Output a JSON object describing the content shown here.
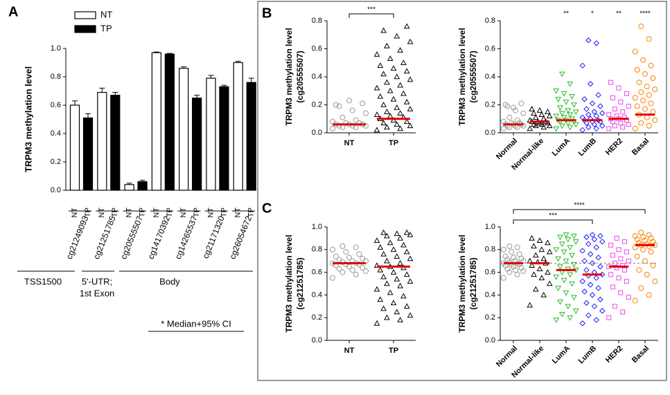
{
  "chart_data": [
    {
      "type": "bar",
      "panel": "A",
      "ylabel": "TRPM3 methylation level",
      "ylim": [
        0,
        1
      ],
      "yticks": [
        {
          "value": 0,
          "label": "0.0"
        },
        {
          "value": 0.2,
          "label": "0.2"
        },
        {
          "value": 0.4,
          "label": "0.4"
        },
        {
          "value": 0.6,
          "label": "0.6"
        },
        {
          "value": 0.8,
          "label": "0.8"
        },
        {
          "value": 1,
          "label": "1.0"
        }
      ],
      "categories": [
        "cg21249093",
        "cg21251785",
        "cg20555507",
        "cg14170392",
        "cg14265537",
        "cg21171320",
        "cg26054672"
      ],
      "category_colors": [
        "#000000",
        "#4a4ae8",
        "#e01818",
        "#000000",
        "#000000",
        "#000000",
        "#000000"
      ],
      "series": [
        {
          "name": "NT",
          "color": "#ffffff",
          "values": [
            0.6,
            0.69,
            0.04,
            0.97,
            0.86,
            0.79,
            0.9
          ],
          "errors": [
            0.03,
            0.03,
            0.01,
            0.005,
            0.01,
            0.02,
            0.01
          ]
        },
        {
          "name": "TP",
          "color": "#000000",
          "values": [
            0.51,
            0.67,
            0.06,
            0.96,
            0.65,
            0.73,
            0.76
          ],
          "errors": [
            0.03,
            0.02,
            0.01,
            0.005,
            0.02,
            0.01,
            0.03
          ]
        }
      ],
      "regions": [
        {
          "lines": [
            "TSS1500"
          ],
          "color": "#1a1acc"
        },
        {
          "lines": [
            "5'-UTR;",
            "1st Exon"
          ],
          "color": "#e01818"
        },
        {
          "lines": [
            "Body"
          ],
          "color": "#000000"
        }
      ],
      "note": "* Median+95% CI"
    },
    {
      "type": "strip",
      "panel": "B",
      "ylabel": [
        "TRPM3 methylation level",
        "(cg20555507)"
      ],
      "ylim": [
        0,
        0.8
      ],
      "yticks": [
        {
          "value": 0,
          "label": "0.0"
        },
        {
          "value": 0.2,
          "label": "0.2"
        },
        {
          "value": 0.4,
          "label": "0.4"
        },
        {
          "value": 0.6,
          "label": "0.6"
        },
        {
          "value": 0.8,
          "label": "0.8"
        }
      ],
      "categories": [
        "NT",
        "TP"
      ],
      "groups": [
        {
          "color": "#999999",
          "marker": "circle",
          "median": 0.06,
          "values": [
            0.03,
            0.04,
            0.04,
            0.05,
            0.05,
            0.05,
            0.06,
            0.06,
            0.06,
            0.07,
            0.07,
            0.08,
            0.09,
            0.11,
            0.14,
            0.16,
            0.19,
            0.21,
            0.23,
            0.2
          ]
        },
        {
          "color": "#000000",
          "marker": "triangle",
          "median": 0.1,
          "values": [
            0.02,
            0.03,
            0.04,
            0.05,
            0.06,
            0.07,
            0.08,
            0.09,
            0.1,
            0.11,
            0.12,
            0.13,
            0.14,
            0.15,
            0.17,
            0.18,
            0.2,
            0.22,
            0.24,
            0.26,
            0.28,
            0.3,
            0.32,
            0.34,
            0.36,
            0.38,
            0.4,
            0.42,
            0.44,
            0.46,
            0.48,
            0.5,
            0.53,
            0.56,
            0.59,
            0.62,
            0.65,
            0.69,
            0.73,
            0.76
          ]
        }
      ],
      "comparisons": [
        {
          "groups": [
            "NT",
            "TP"
          ],
          "label": "***"
        }
      ]
    },
    {
      "type": "strip",
      "ylabel": [
        "TRPM3 methylation level",
        "(cg20555507)"
      ],
      "ylim": [
        0,
        0.8
      ],
      "yticks": [
        {
          "value": 0,
          "label": "0.0"
        },
        {
          "value": 0.2,
          "label": "0.2"
        },
        {
          "value": 0.4,
          "label": "0.4"
        },
        {
          "value": 0.6,
          "label": "0.6"
        },
        {
          "value": 0.8,
          "label": "0.8"
        }
      ],
      "categories": [
        "Normal",
        "Normal-like",
        "LumA",
        "LumB",
        "HER2",
        "Basal"
      ],
      "stars": [
        null,
        null,
        "**",
        "*",
        "**",
        "****"
      ],
      "groups": [
        {
          "color": "#999999",
          "marker": "circle",
          "median": 0.06,
          "values": [
            0.03,
            0.04,
            0.04,
            0.05,
            0.05,
            0.05,
            0.06,
            0.06,
            0.06,
            0.07,
            0.07,
            0.08,
            0.09,
            0.11,
            0.14,
            0.16,
            0.19,
            0.21,
            0.18,
            0.2
          ]
        },
        {
          "color": "#000000",
          "marker": "triangle",
          "median": 0.08,
          "values": [
            0.03,
            0.04,
            0.05,
            0.05,
            0.06,
            0.06,
            0.07,
            0.07,
            0.08,
            0.08,
            0.08,
            0.09,
            0.1,
            0.11,
            0.12,
            0.13,
            0.14,
            0.15,
            0.16,
            0.17
          ]
        },
        {
          "color": "#22bb22",
          "marker": "invtriangle",
          "median": 0.09,
          "values": [
            0.03,
            0.04,
            0.05,
            0.06,
            0.07,
            0.08,
            0.08,
            0.09,
            0.09,
            0.1,
            0.11,
            0.12,
            0.13,
            0.14,
            0.15,
            0.16,
            0.18,
            0.2,
            0.22,
            0.24,
            0.26,
            0.28,
            0.3,
            0.35,
            0.42
          ]
        },
        {
          "color": "#1a1aff",
          "marker": "diamond",
          "median": 0.09,
          "values": [
            0.02,
            0.03,
            0.04,
            0.05,
            0.06,
            0.07,
            0.08,
            0.08,
            0.09,
            0.09,
            0.1,
            0.11,
            0.12,
            0.13,
            0.14,
            0.15,
            0.17,
            0.19,
            0.21,
            0.24,
            0.27,
            0.35,
            0.48,
            0.64,
            0.66
          ]
        },
        {
          "color": "#ee44ee",
          "marker": "square",
          "median": 0.1,
          "values": [
            0.03,
            0.04,
            0.05,
            0.06,
            0.07,
            0.08,
            0.09,
            0.1,
            0.1,
            0.11,
            0.12,
            0.13,
            0.15,
            0.17,
            0.19,
            0.22,
            0.25,
            0.28,
            0.32,
            0.36
          ]
        },
        {
          "color": "#ff7f00",
          "marker": "circle",
          "median": 0.13,
          "values": [
            0.03,
            0.05,
            0.07,
            0.09,
            0.11,
            0.13,
            0.15,
            0.17,
            0.19,
            0.21,
            0.23,
            0.25,
            0.27,
            0.29,
            0.31,
            0.33,
            0.36,
            0.39,
            0.42,
            0.45,
            0.48,
            0.52,
            0.58,
            0.67,
            0.76
          ]
        }
      ]
    },
    {
      "type": "strip",
      "panel": "C",
      "ylabel": [
        "TRPM3 methylation level",
        "(cg21251785)"
      ],
      "ylim": [
        0,
        1
      ],
      "yticks": [
        {
          "value": 0,
          "label": "0.0"
        },
        {
          "value": 0.2,
          "label": "0.2"
        },
        {
          "value": 0.4,
          "label": "0.4"
        },
        {
          "value": 0.6,
          "label": "0.6"
        },
        {
          "value": 0.8,
          "label": "0.8"
        },
        {
          "value": 1,
          "label": "1.0"
        }
      ],
      "categories": [
        "NT",
        "TP"
      ],
      "groups": [
        {
          "color": "#999999",
          "marker": "circle",
          "median": 0.68,
          "values": [
            0.55,
            0.58,
            0.6,
            0.61,
            0.62,
            0.63,
            0.64,
            0.65,
            0.66,
            0.67,
            0.67,
            0.68,
            0.68,
            0.69,
            0.7,
            0.7,
            0.71,
            0.72,
            0.73,
            0.74,
            0.76,
            0.78,
            0.8,
            0.82,
            0.83
          ]
        },
        {
          "color": "#000000",
          "marker": "triangle",
          "median": 0.65,
          "values": [
            0.15,
            0.18,
            0.2,
            0.22,
            0.25,
            0.28,
            0.3,
            0.33,
            0.36,
            0.39,
            0.42,
            0.45,
            0.48,
            0.5,
            0.52,
            0.54,
            0.56,
            0.58,
            0.6,
            0.62,
            0.64,
            0.65,
            0.66,
            0.68,
            0.7,
            0.72,
            0.74,
            0.76,
            0.78,
            0.8,
            0.82,
            0.84,
            0.86,
            0.88,
            0.9,
            0.92,
            0.93,
            0.94,
            0.95,
            0.95
          ]
        }
      ]
    },
    {
      "type": "strip",
      "ylabel": [
        "TRPM3 methylation level",
        "(cg21251785)"
      ],
      "ylim": [
        0,
        1
      ],
      "yticks": [
        {
          "value": 0,
          "label": "0.0"
        },
        {
          "value": 0.2,
          "label": "0.2"
        },
        {
          "value": 0.4,
          "label": "0.4"
        },
        {
          "value": 0.6,
          "label": "0.6"
        },
        {
          "value": 0.8,
          "label": "0.8"
        },
        {
          "value": 1,
          "label": "1.0"
        }
      ],
      "categories": [
        "Normal",
        "Normal-like",
        "LumA",
        "LumB",
        "HER2",
        "Basal"
      ],
      "reference_line": 0.68,
      "comparisons": [
        {
          "groups": [
            "Normal",
            "LumB"
          ],
          "label": "***"
        },
        {
          "groups": [
            "Normal",
            "Basal"
          ],
          "label": "****"
        }
      ],
      "groups": [
        {
          "color": "#999999",
          "marker": "circle",
          "median": 0.68,
          "values": [
            0.55,
            0.58,
            0.6,
            0.61,
            0.62,
            0.63,
            0.64,
            0.65,
            0.66,
            0.67,
            0.67,
            0.68,
            0.68,
            0.69,
            0.7,
            0.7,
            0.71,
            0.72,
            0.73,
            0.74,
            0.76,
            0.78,
            0.8,
            0.82,
            0.83
          ]
        },
        {
          "color": "#000000",
          "marker": "triangle",
          "median": 0.68,
          "values": [
            0.31,
            0.4,
            0.45,
            0.5,
            0.55,
            0.58,
            0.6,
            0.63,
            0.66,
            0.68,
            0.69,
            0.7,
            0.72,
            0.75,
            0.78,
            0.8,
            0.83,
            0.86,
            0.88,
            0.9
          ]
        },
        {
          "color": "#22bb22",
          "marker": "invtriangle",
          "median": 0.62,
          "values": [
            0.18,
            0.2,
            0.23,
            0.26,
            0.3,
            0.34,
            0.38,
            0.42,
            0.46,
            0.5,
            0.53,
            0.56,
            0.58,
            0.6,
            0.62,
            0.63,
            0.65,
            0.67,
            0.7,
            0.72,
            0.75,
            0.78,
            0.8,
            0.82,
            0.85,
            0.87,
            0.89,
            0.91,
            0.92,
            0.93
          ]
        },
        {
          "color": "#1a1aff",
          "marker": "diamond",
          "median": 0.58,
          "values": [
            0.15,
            0.18,
            0.22,
            0.26,
            0.3,
            0.33,
            0.36,
            0.4,
            0.43,
            0.46,
            0.49,
            0.52,
            0.55,
            0.57,
            0.58,
            0.6,
            0.62,
            0.65,
            0.68,
            0.7,
            0.73,
            0.76,
            0.79,
            0.82,
            0.85,
            0.87,
            0.89,
            0.91,
            0.92,
            0.93
          ]
        },
        {
          "color": "#ee44ee",
          "marker": "square",
          "median": 0.65,
          "values": [
            0.2,
            0.25,
            0.3,
            0.38,
            0.42,
            0.47,
            0.52,
            0.55,
            0.58,
            0.62,
            0.64,
            0.65,
            0.66,
            0.68,
            0.7,
            0.72,
            0.75,
            0.78,
            0.8,
            0.84,
            0.87,
            0.9
          ]
        },
        {
          "color": "#ff7f00",
          "marker": "circle",
          "median": 0.84,
          "values": [
            0.35,
            0.4,
            0.46,
            0.52,
            0.58,
            0.62,
            0.66,
            0.7,
            0.74,
            0.78,
            0.8,
            0.82,
            0.83,
            0.84,
            0.84,
            0.85,
            0.86,
            0.87,
            0.88,
            0.89,
            0.9,
            0.91,
            0.92,
            0.93,
            0.95
          ]
        }
      ]
    }
  ]
}
